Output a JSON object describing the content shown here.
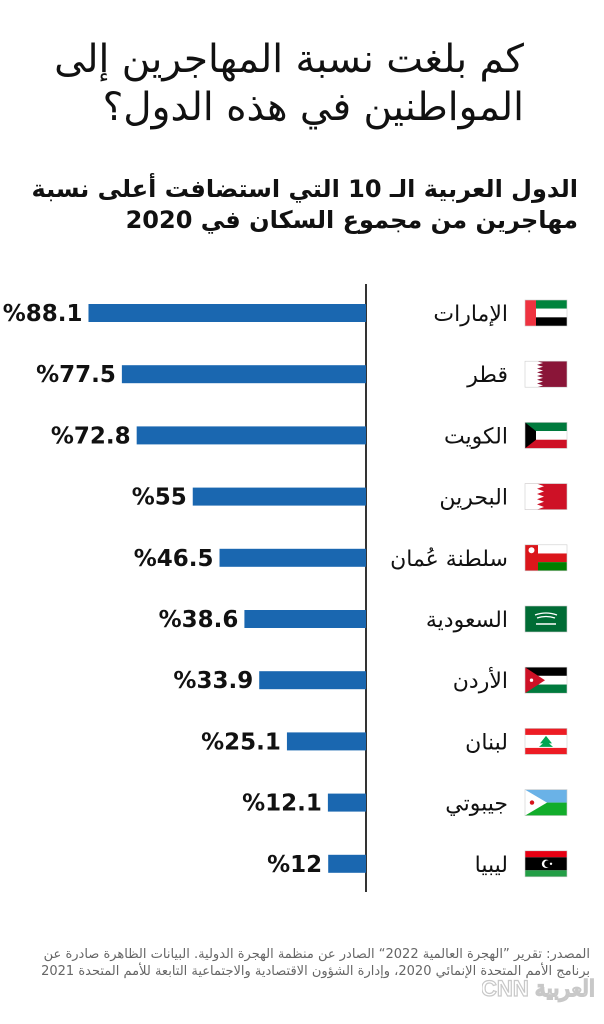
{
  "title": "كم بلغت نسبة المهاجرين إلى المواطنين في هذه الدول؟",
  "subtitle": "الدول العربية الـ 10 التي استضافت أعلى نسبة مهاجرين من مجموع السكان في 2020",
  "source": "المصدر: تقرير ”الهجرة العالمية 2022“ الصادر عن منظمة الهجرة الدولية. البيانات الظاهرة صادرة عن برنامج الأمم المتحدة الإنمائي 2020، وإدارة الشؤون الاقتصادية والاجتماعية التابعة للأمم المتحدة 2021",
  "logo_text": "CNN العربية",
  "colors": {
    "bar": "#1a67b0",
    "text": "#111111",
    "axis": "#000000",
    "source": "#666666"
  },
  "chart_data": {
    "type": "bar",
    "orientation": "horizontal",
    "title": "الدول العربية الـ 10 التي استضافت أعلى نسبة مهاجرين من مجموع السكان في 2020",
    "value_suffix": "%",
    "xlim": [
      0,
      100
    ],
    "categories": [
      "الإمارات",
      "قطر",
      "الكويت",
      "البحرين",
      "سلطنة عُمان",
      "السعودية",
      "الأردن",
      "لبنان",
      "جيبوتي",
      "ليبيا"
    ],
    "values": [
      88.1,
      77.5,
      72.8,
      55,
      46.5,
      38.6,
      33.9,
      25.1,
      12.1,
      12
    ],
    "labels": [
      "%88.1",
      "%77.5",
      "%72.8",
      "%55",
      "%46.5",
      "%38.6",
      "%33.9",
      "%25.1",
      "%12.1",
      "%12"
    ],
    "flags": [
      "uae-flag-icon",
      "qatar-flag-icon",
      "kuwait-flag-icon",
      "bahrain-flag-icon",
      "oman-flag-icon",
      "saudi-flag-icon",
      "jordan-flag-icon",
      "lebanon-flag-icon",
      "djibouti-flag-icon",
      "libya-flag-icon"
    ]
  }
}
